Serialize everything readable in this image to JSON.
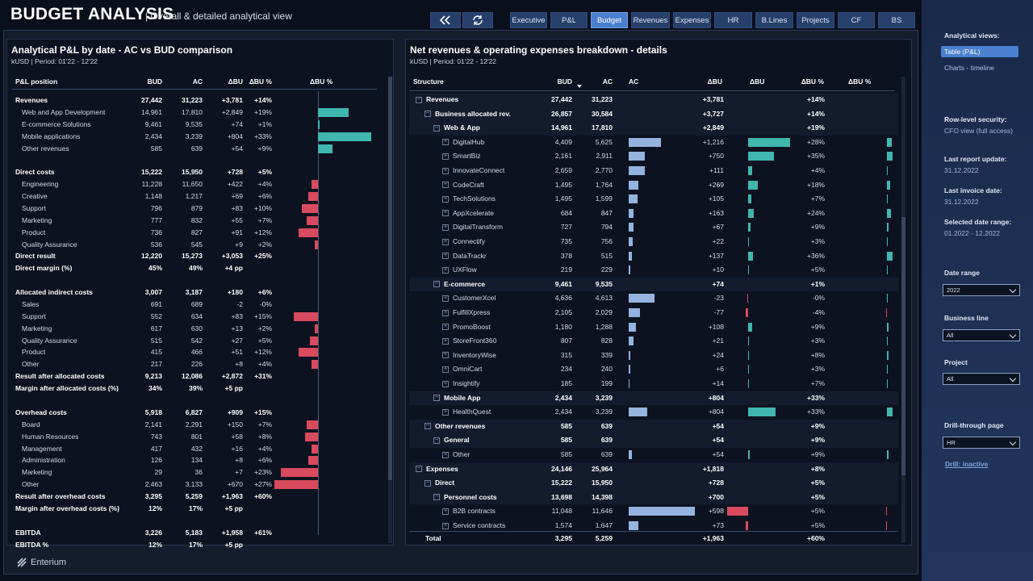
{
  "header": {
    "title": "BUDGET ANALYSIS",
    "subtitle": "| Overall & detailed analytical view",
    "nav": [
      {
        "label": "Executive",
        "active": false
      },
      {
        "label": "P&L",
        "active": false
      },
      {
        "label": "Budget",
        "active": true
      },
      {
        "label": "Revenues",
        "active": false
      },
      {
        "label": "Expenses",
        "active": false
      },
      {
        "label": "HR",
        "active": false
      },
      {
        "label": "B.Lines",
        "active": false
      },
      {
        "label": "Projects",
        "active": false
      },
      {
        "label": "CF",
        "active": false
      },
      {
        "label": "BS",
        "active": false
      }
    ],
    "icons": [
      "back-icon",
      "refresh-icon"
    ]
  },
  "left_panel": {
    "title": "Analytical P&L by date - AC vs BUD comparison",
    "subtitle": "kUSD | Period: 01'22 - 12'22",
    "columns": [
      "P&L position",
      "BUD",
      "AC",
      "ΔBU",
      "ΔBU %",
      "ΔBU %"
    ],
    "rows": [
      {
        "label": "Revenues",
        "bud": "27,442",
        "ac": "31,223",
        "dbu": "+3,781",
        "dbup": "+14%",
        "bold": true,
        "pct": null
      },
      {
        "label": "Web and App Development",
        "bud": "14,961",
        "ac": "17,810",
        "dbu": "+2,849",
        "dbup": "+19%",
        "bold": false,
        "pct": 19
      },
      {
        "label": "E-commerce Solutions",
        "bud": "9,461",
        "ac": "9,535",
        "dbu": "+74",
        "dbup": "+1%",
        "bold": false,
        "pct": 1
      },
      {
        "label": "Mobile applications",
        "bud": "2,434",
        "ac": "3,239",
        "dbu": "+804",
        "dbup": "+33%",
        "bold": false,
        "pct": 33
      },
      {
        "label": "Other revenues",
        "bud": "585",
        "ac": "639",
        "dbu": "+54",
        "dbup": "+9%",
        "bold": false,
        "pct": 9
      },
      {
        "label": "",
        "bud": "",
        "ac": "",
        "dbu": "",
        "dbup": "",
        "bold": false,
        "pct": null
      },
      {
        "label": "Direct costs",
        "bud": "15,222",
        "ac": "15,950",
        "dbu": "+728",
        "dbup": "+5%",
        "bold": true,
        "pct": null
      },
      {
        "label": "Engineering",
        "bud": "11,228",
        "ac": "11,650",
        "dbu": "+422",
        "dbup": "+4%",
        "bold": false,
        "pct": -4
      },
      {
        "label": "Creative",
        "bud": "1,148",
        "ac": "1,217",
        "dbu": "+69",
        "dbup": "+6%",
        "bold": false,
        "pct": -6
      },
      {
        "label": "Support",
        "bud": "796",
        "ac": "879",
        "dbu": "+83",
        "dbup": "+10%",
        "bold": false,
        "pct": -10
      },
      {
        "label": "Marketing",
        "bud": "777",
        "ac": "832",
        "dbu": "+55",
        "dbup": "+7%",
        "bold": false,
        "pct": -7
      },
      {
        "label": "Product",
        "bud": "736",
        "ac": "827",
        "dbu": "+91",
        "dbup": "+12%",
        "bold": false,
        "pct": -12
      },
      {
        "label": "Quality Assurance",
        "bud": "536",
        "ac": "545",
        "dbu": "+9",
        "dbup": "+2%",
        "bold": false,
        "pct": -2
      },
      {
        "label": "Direct result",
        "bud": "12,220",
        "ac": "15,273",
        "dbu": "+3,053",
        "dbup": "+25%",
        "bold": true,
        "pct": null
      },
      {
        "label": "Direct margin (%)",
        "bud": "45%",
        "ac": "49%",
        "dbu": "+4 pp",
        "dbup": "",
        "bold": true,
        "pct": null
      },
      {
        "label": "",
        "bud": "",
        "ac": "",
        "dbu": "",
        "dbup": "",
        "bold": false,
        "pct": null
      },
      {
        "label": "Allocated indirect costs",
        "bud": "3,007",
        "ac": "3,187",
        "dbu": "+180",
        "dbup": "+6%",
        "bold": true,
        "pct": null
      },
      {
        "label": "Sales",
        "bud": "691",
        "ac": "689",
        "dbu": "-2",
        "dbup": "-0%",
        "bold": false,
        "pct": 0
      },
      {
        "label": "Support",
        "bud": "552",
        "ac": "634",
        "dbu": "+83",
        "dbup": "+15%",
        "bold": false,
        "pct": -15
      },
      {
        "label": "Marketing",
        "bud": "617",
        "ac": "630",
        "dbu": "+13",
        "dbup": "+2%",
        "bold": false,
        "pct": -2
      },
      {
        "label": "Quality Assurance",
        "bud": "515",
        "ac": "542",
        "dbu": "+27",
        "dbup": "+5%",
        "bold": false,
        "pct": -5
      },
      {
        "label": "Product",
        "bud": "415",
        "ac": "466",
        "dbu": "+51",
        "dbup": "+12%",
        "bold": false,
        "pct": -12
      },
      {
        "label": "Other",
        "bud": "217",
        "ac": "226",
        "dbu": "+8",
        "dbup": "+4%",
        "bold": false,
        "pct": -4
      },
      {
        "label": "Result after allocated costs",
        "bud": "9,213",
        "ac": "12,086",
        "dbu": "+2,872",
        "dbup": "+31%",
        "bold": true,
        "pct": null
      },
      {
        "label": "Margin after allocated costs (%)",
        "bud": "34%",
        "ac": "39%",
        "dbu": "+5 pp",
        "dbup": "",
        "bold": true,
        "pct": null
      },
      {
        "label": "",
        "bud": "",
        "ac": "",
        "dbu": "",
        "dbup": "",
        "bold": false,
        "pct": null
      },
      {
        "label": "Overhead costs",
        "bud": "5,918",
        "ac": "6,827",
        "dbu": "+909",
        "dbup": "+15%",
        "bold": true,
        "pct": null
      },
      {
        "label": "Board",
        "bud": "2,141",
        "ac": "2,291",
        "dbu": "+150",
        "dbup": "+7%",
        "bold": false,
        "pct": -7
      },
      {
        "label": "Human Resources",
        "bud": "743",
        "ac": "801",
        "dbu": "+58",
        "dbup": "+8%",
        "bold": false,
        "pct": -8
      },
      {
        "label": "Management",
        "bud": "417",
        "ac": "432",
        "dbu": "+16",
        "dbup": "+4%",
        "bold": false,
        "pct": -4
      },
      {
        "label": "Administration",
        "bud": "126",
        "ac": "134",
        "dbu": "+8",
        "dbup": "+6%",
        "bold": false,
        "pct": -6
      },
      {
        "label": "Marketing",
        "bud": "29",
        "ac": "36",
        "dbu": "+7",
        "dbup": "+23%",
        "bold": false,
        "pct": -23
      },
      {
        "label": "Other",
        "bud": "2,463",
        "ac": "3,133",
        "dbu": "+670",
        "dbup": "+27%",
        "bold": false,
        "pct": -27
      },
      {
        "label": "Result after overhead costs",
        "bud": "3,295",
        "ac": "5,259",
        "dbu": "+1,963",
        "dbup": "+60%",
        "bold": true,
        "pct": null
      },
      {
        "label": "Margin after overhead costs (%)",
        "bud": "12%",
        "ac": "17%",
        "dbu": "+5 pp",
        "dbup": "",
        "bold": true,
        "pct": null
      },
      {
        "label": "",
        "bud": "",
        "ac": "",
        "dbu": "",
        "dbup": "",
        "bold": false,
        "pct": null
      },
      {
        "label": "EBITDA",
        "bud": "3,226",
        "ac": "5,183",
        "dbu": "+1,958",
        "dbup": "+61%",
        "bold": true,
        "pct": null
      },
      {
        "label": "EBITDA %",
        "bud": "12%",
        "ac": "17%",
        "dbu": "+5 pp",
        "dbup": "",
        "bold": true,
        "pct": null
      }
    ]
  },
  "right_panel": {
    "title": "Net revenues & operating expenses breakdown - details",
    "subtitle": "kUSD | Period: 01'22 - 12'22",
    "columns": [
      "Structure",
      "BUD",
      "AC",
      "AC",
      "ΔBU",
      "ΔBU",
      "ΔBU %",
      "ΔBU %"
    ],
    "rows": [
      {
        "label": "Revenues",
        "level": 0,
        "bud": "27,442",
        "ac": "31,223",
        "dbu": "+3,781",
        "dbup": "+14%",
        "bold": true,
        "bar": false,
        "acv": null,
        "dbuv": null,
        "pct": null
      },
      {
        "label": "Business allocated rev.",
        "level": 1,
        "bud": "26,857",
        "ac": "30,584",
        "dbu": "+3,727",
        "dbup": "+14%",
        "bold": true,
        "bar": false,
        "acv": null,
        "dbuv": null,
        "pct": null
      },
      {
        "label": "Web & App",
        "level": 2,
        "bud": "14,961",
        "ac": "17,810",
        "dbu": "+2,849",
        "dbup": "+19%",
        "bold": true,
        "bar": false,
        "acv": null,
        "dbuv": null,
        "pct": null
      },
      {
        "label": "DigitalHub",
        "level": 3,
        "bud": "4,409",
        "ac": "5,625",
        "dbu": "+1,216",
        "dbup": "+28%",
        "bold": false,
        "bar": true,
        "acv": 5625,
        "dbuv": 1216,
        "pct": 28
      },
      {
        "label": "SmartBiz",
        "level": 3,
        "bud": "2,161",
        "ac": "2,911",
        "dbu": "+750",
        "dbup": "+35%",
        "bold": false,
        "bar": true,
        "acv": 2911,
        "dbuv": 750,
        "pct": 35
      },
      {
        "label": "InnovateConnect",
        "level": 3,
        "bud": "2,659",
        "ac": "2,770",
        "dbu": "+111",
        "dbup": "+4%",
        "bold": false,
        "bar": true,
        "acv": 2770,
        "dbuv": 111,
        "pct": 4
      },
      {
        "label": "CodeCraft",
        "level": 3,
        "bud": "1,495",
        "ac": "1,764",
        "dbu": "+269",
        "dbup": "+18%",
        "bold": false,
        "bar": true,
        "acv": 1764,
        "dbuv": 269,
        "pct": 18
      },
      {
        "label": "TechSolutions",
        "level": 3,
        "bud": "1,495",
        "ac": "1,599",
        "dbu": "+105",
        "dbup": "+7%",
        "bold": false,
        "bar": true,
        "acv": 1599,
        "dbuv": 105,
        "pct": 7
      },
      {
        "label": "AppXcelerate",
        "level": 3,
        "bud": "684",
        "ac": "847",
        "dbu": "+163",
        "dbup": "+24%",
        "bold": false,
        "bar": true,
        "acv": 847,
        "dbuv": 163,
        "pct": 24
      },
      {
        "label": "DigitalTransform",
        "level": 3,
        "bud": "727",
        "ac": "794",
        "dbu": "+67",
        "dbup": "+9%",
        "bold": false,
        "bar": true,
        "acv": 794,
        "dbuv": 67,
        "pct": 9
      },
      {
        "label": "Connectify",
        "level": 3,
        "bud": "735",
        "ac": "756",
        "dbu": "+22",
        "dbup": "+3%",
        "bold": false,
        "bar": true,
        "acv": 756,
        "dbuv": 22,
        "pct": 3
      },
      {
        "label": "DataTrackr",
        "level": 3,
        "bud": "378",
        "ac": "515",
        "dbu": "+137",
        "dbup": "+36%",
        "bold": false,
        "bar": true,
        "acv": 515,
        "dbuv": 137,
        "pct": 36
      },
      {
        "label": "UXFlow",
        "level": 3,
        "bud": "219",
        "ac": "229",
        "dbu": "+10",
        "dbup": "+5%",
        "bold": false,
        "bar": true,
        "acv": 229,
        "dbuv": 10,
        "pct": 5
      },
      {
        "label": "E-commerce",
        "level": 2,
        "bud": "9,461",
        "ac": "9,535",
        "dbu": "+74",
        "dbup": "+1%",
        "bold": true,
        "bar": false,
        "acv": null,
        "dbuv": null,
        "pct": null
      },
      {
        "label": "CustomerXcel",
        "level": 3,
        "bud": "4,636",
        "ac": "4,613",
        "dbu": "-23",
        "dbup": "-0%",
        "bold": false,
        "bar": true,
        "acv": 4613,
        "dbuv": -23,
        "pct": 0
      },
      {
        "label": "FulfillXpress",
        "level": 3,
        "bud": "2,105",
        "ac": "2,029",
        "dbu": "-77",
        "dbup": "-4%",
        "bold": false,
        "bar": true,
        "acv": 2029,
        "dbuv": -77,
        "pct": -4
      },
      {
        "label": "PromoBoost",
        "level": 3,
        "bud": "1,180",
        "ac": "1,288",
        "dbu": "+108",
        "dbup": "+9%",
        "bold": false,
        "bar": true,
        "acv": 1288,
        "dbuv": 108,
        "pct": 9
      },
      {
        "label": "StoreFront360",
        "level": 3,
        "bud": "807",
        "ac": "828",
        "dbu": "+21",
        "dbup": "+3%",
        "bold": false,
        "bar": true,
        "acv": 828,
        "dbuv": 21,
        "pct": 3
      },
      {
        "label": "InventoryWise",
        "level": 3,
        "bud": "315",
        "ac": "339",
        "dbu": "+24",
        "dbup": "+8%",
        "bold": false,
        "bar": true,
        "acv": 339,
        "dbuv": 24,
        "pct": 8
      },
      {
        "label": "OmniCart",
        "level": 3,
        "bud": "234",
        "ac": "240",
        "dbu": "+6",
        "dbup": "+3%",
        "bold": false,
        "bar": true,
        "acv": 240,
        "dbuv": 6,
        "pct": 3
      },
      {
        "label": "Insightify",
        "level": 3,
        "bud": "185",
        "ac": "199",
        "dbu": "+14",
        "dbup": "+7%",
        "bold": false,
        "bar": true,
        "acv": 199,
        "dbuv": 14,
        "pct": 7
      },
      {
        "label": "Mobile App",
        "level": 2,
        "bud": "2,434",
        "ac": "3,239",
        "dbu": "+804",
        "dbup": "+33%",
        "bold": true,
        "bar": false,
        "acv": null,
        "dbuv": null,
        "pct": null
      },
      {
        "label": "HealthQuest",
        "level": 3,
        "bud": "2,434",
        "ac": "3,239",
        "dbu": "+804",
        "dbup": "+33%",
        "bold": false,
        "bar": true,
        "acv": 3239,
        "dbuv": 804,
        "pct": 33
      },
      {
        "label": "Other revenues",
        "level": 1,
        "bud": "585",
        "ac": "639",
        "dbu": "+54",
        "dbup": "+9%",
        "bold": true,
        "bar": false,
        "acv": null,
        "dbuv": null,
        "pct": null
      },
      {
        "label": "General",
        "level": 2,
        "bud": "585",
        "ac": "639",
        "dbu": "+54",
        "dbup": "+9%",
        "bold": true,
        "bar": false,
        "acv": null,
        "dbuv": null,
        "pct": null
      },
      {
        "label": "Other",
        "level": 3,
        "bud": "585",
        "ac": "639",
        "dbu": "+54",
        "dbup": "+9%",
        "bold": false,
        "bar": true,
        "acv": 639,
        "dbuv": 54,
        "pct": 9
      },
      {
        "label": "Expenses",
        "level": 0,
        "bud": "24,146",
        "ac": "25,964",
        "dbu": "+1,818",
        "dbup": "+8%",
        "bold": true,
        "bar": false,
        "acv": null,
        "dbuv": null,
        "pct": null
      },
      {
        "label": "Direct",
        "level": 1,
        "bud": "15,222",
        "ac": "15,950",
        "dbu": "+728",
        "dbup": "+5%",
        "bold": true,
        "bar": false,
        "acv": null,
        "dbuv": null,
        "pct": null
      },
      {
        "label": "Personnel costs",
        "level": 2,
        "bud": "13,698",
        "ac": "14,398",
        "dbu": "+700",
        "dbup": "+5%",
        "bold": true,
        "bar": false,
        "acv": null,
        "dbuv": null,
        "pct": null
      },
      {
        "label": "B2B contracts",
        "level": 3,
        "bud": "11,048",
        "ac": "11,646",
        "dbu": "+598",
        "dbup": "+5%",
        "bold": false,
        "bar": true,
        "acv": 11646,
        "dbuv": -598,
        "pct": -5
      },
      {
        "label": "Service contracts",
        "level": 3,
        "bud": "1,574",
        "ac": "1,647",
        "dbu": "+73",
        "dbup": "+5%",
        "bold": false,
        "bar": true,
        "acv": 1647,
        "dbuv": -73,
        "pct": -5
      }
    ],
    "total": {
      "label": "Total",
      "bud": "3,295",
      "ac": "5,259",
      "dbu": "+1,963",
      "dbup": "+60%"
    }
  },
  "sidebar": {
    "views_label": "Analytical views:",
    "view_table": "Table (P&L)",
    "view_charts": "Charts - timeline",
    "security_label": "Row-level security:",
    "security_value": "CFO view (full access)",
    "last_report_label": "Last report update:",
    "last_report_value": "31.12.2022",
    "last_invoice_label": "Last invoice date:",
    "last_invoice_value": "31.12.2022",
    "selected_range_label": "Selected date range:",
    "selected_range_value": "01.2022 - 12.2022",
    "date_range_label": "Date range",
    "date_range_value": "2022",
    "business_line_label": "Business line",
    "business_line_value": "All",
    "project_label": "Project",
    "project_value": "All",
    "drill_label": "Drill-through page",
    "drill_value": "HR",
    "drill_status": "Drill: inactive"
  },
  "footer": {
    "brand": "Enterium"
  },
  "colors": {
    "positive": "#3fb7ae",
    "negative": "#d84a5d",
    "ac_bar": "#94b4df",
    "accent": "#4b7fcf"
  }
}
